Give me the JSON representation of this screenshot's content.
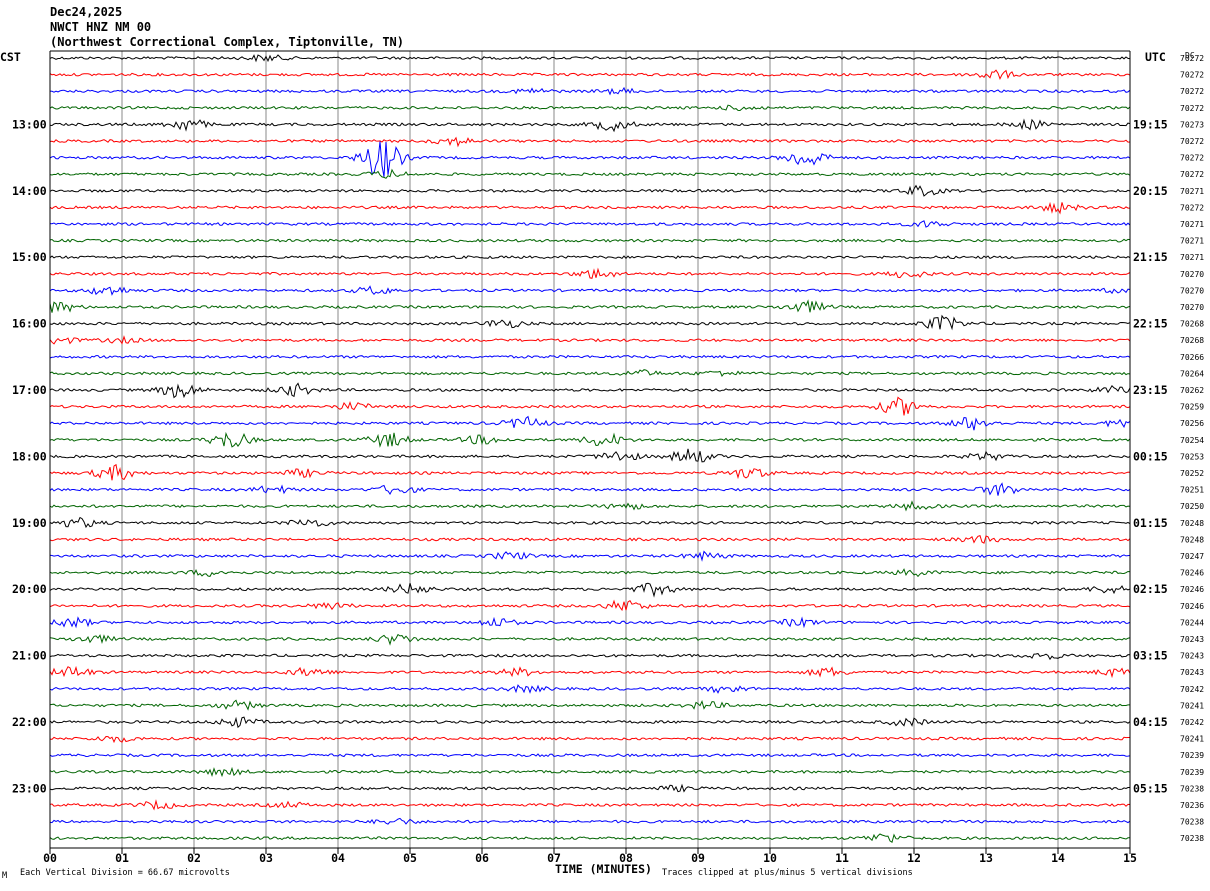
{
  "header": {
    "date": "Dec24,2025",
    "station": "NWCT HNZ NM 00",
    "location": "(Northwest Correctional Complex, Tiptonville, TN)"
  },
  "left_zone": "CST",
  "right_zone": "UTC",
  "dc_label": "DC",
  "footer": {
    "scale_note": "Each Vertical Division =   66.67 microvolts",
    "clip_note": "Traces clipped at plus/minus 5 vertical divisions",
    "corner_mark": "M"
  },
  "colors": {
    "black": "#000000",
    "red": "#ff0000",
    "blue": "#0000ff",
    "green": "#006400",
    "grid": "#888888"
  },
  "chart_data": {
    "type": "line",
    "xlabel": "TIME (MINUTES)",
    "x_ticks": [
      "00",
      "01",
      "02",
      "03",
      "04",
      "05",
      "06",
      "07",
      "08",
      "09",
      "10",
      "11",
      "12",
      "13",
      "14",
      "15"
    ],
    "xlim": [
      0,
      15
    ],
    "trace_color_cycle": [
      "black",
      "red",
      "blue",
      "green"
    ],
    "left_hour_labels": [
      "13:00",
      "14:00",
      "15:00",
      "16:00",
      "17:00",
      "18:00",
      "19:00",
      "20:00",
      "21:00",
      "22:00",
      "23:00"
    ],
    "right_hour_labels": [
      "19:15",
      "20:15",
      "21:15",
      "22:15",
      "23:15",
      "00:15",
      "01:15",
      "02:15",
      "03:15",
      "04:15",
      "05:15"
    ],
    "hour_label_trace_index": [
      4,
      8,
      12,
      16,
      20,
      24,
      28,
      32,
      36,
      40,
      44
    ],
    "dc_offsets": [
      "70272",
      "70272",
      "70272",
      "70272",
      "70273",
      "70272",
      "70272",
      "70272",
      "70271",
      "70272",
      "70271",
      "70271",
      "70271",
      "70270",
      "70270",
      "70270",
      "70268",
      "70268",
      "70266",
      "70264",
      "70262",
      "70259",
      "70256",
      "70254",
      "70253",
      "70252",
      "70251",
      "70250",
      "70248",
      "70248",
      "70247",
      "70246",
      "70246",
      "70246",
      "70244",
      "70243",
      "70243",
      "70243",
      "70242",
      "70241",
      "70242",
      "70241",
      "70239",
      "70239",
      "70238",
      "70236",
      "70238",
      "70238"
    ],
    "events": [
      [
        [
          3.0,
          0.5
        ]
      ],
      [
        [
          13.1,
          0.8
        ]
      ],
      [
        [
          6.7,
          0.4
        ],
        [
          7.9,
          0.4
        ]
      ],
      [
        [
          9.6,
          0.4
        ]
      ],
      [
        [
          1.9,
          1.0
        ],
        [
          7.8,
          1.0
        ],
        [
          13.6,
          0.7
        ]
      ],
      [
        [
          5.6,
          0.7
        ]
      ],
      [
        [
          4.6,
          3.5
        ],
        [
          10.5,
          1.6
        ]
      ],
      [
        [
          4.7,
          0.6
        ]
      ],
      [
        [
          12.1,
          0.8
        ]
      ],
      [
        [
          14.0,
          0.8
        ]
      ],
      [
        [
          12.2,
          0.5
        ]
      ],
      [],
      [],
      [
        [
          7.6,
          0.8
        ],
        [
          11.9,
          0.6
        ]
      ],
      [
        [
          0.8,
          0.8
        ],
        [
          4.5,
          0.6
        ],
        [
          14.9,
          0.4
        ]
      ],
      [
        [
          0.1,
          0.9
        ],
        [
          10.5,
          1.0
        ]
      ],
      [
        [
          6.3,
          0.7
        ],
        [
          12.4,
          1.2
        ]
      ],
      [
        [
          0.1,
          0.6
        ],
        [
          1.0,
          0.4
        ]
      ],
      [],
      [
        [
          8.2,
          0.5
        ],
        [
          9.3,
          0.4
        ]
      ],
      [
        [
          1.8,
          1.3
        ],
        [
          3.4,
          1.0
        ],
        [
          14.8,
          0.6
        ]
      ],
      [
        [
          4.2,
          0.6
        ],
        [
          11.8,
          1.5
        ]
      ],
      [
        [
          6.6,
          1.0
        ],
        [
          12.8,
          1.1
        ],
        [
          14.9,
          0.6
        ]
      ],
      [
        [
          2.5,
          1.4
        ],
        [
          4.7,
          1.2
        ],
        [
          7.7,
          1.1
        ],
        [
          6.0,
          0.7
        ]
      ],
      [
        [
          7.9,
          0.9
        ],
        [
          8.9,
          1.3
        ],
        [
          13.0,
          0.6
        ]
      ],
      [
        [
          0.9,
          1.3
        ],
        [
          3.5,
          0.6
        ],
        [
          9.7,
          0.9
        ]
      ],
      [
        [
          3.1,
          0.6
        ],
        [
          4.8,
          0.8
        ],
        [
          13.2,
          1.0
        ]
      ],
      [
        [
          8.0,
          0.5
        ],
        [
          12.0,
          0.6
        ]
      ],
      [
        [
          0.4,
          0.8
        ],
        [
          3.6,
          0.7
        ]
      ],
      [
        [
          12.9,
          0.6
        ]
      ],
      [
        [
          6.4,
          0.6
        ],
        [
          9.1,
          0.6
        ]
      ],
      [
        [
          2.2,
          0.5
        ],
        [
          12.0,
          0.5
        ]
      ],
      [
        [
          5.0,
          0.9
        ],
        [
          8.4,
          1.0
        ],
        [
          14.7,
          0.6
        ]
      ],
      [
        [
          3.9,
          0.5
        ],
        [
          8.0,
          1.0
        ]
      ],
      [
        [
          0.3,
          0.8
        ],
        [
          6.2,
          0.7
        ],
        [
          10.4,
          0.6
        ]
      ],
      [
        [
          0.6,
          0.6
        ],
        [
          4.8,
          0.8
        ]
      ],
      [
        [
          13.8,
          0.5
        ]
      ],
      [
        [
          0.3,
          0.9
        ],
        [
          3.6,
          0.7
        ],
        [
          6.5,
          0.6
        ],
        [
          10.8,
          0.7
        ],
        [
          14.8,
          0.6
        ]
      ],
      [
        [
          6.6,
          0.5
        ],
        [
          9.4,
          0.6
        ]
      ],
      [
        [
          2.6,
          0.7
        ],
        [
          9.1,
          0.6
        ]
      ],
      [
        [
          2.6,
          0.8
        ],
        [
          11.9,
          0.6
        ]
      ],
      [
        [
          0.9,
          0.5
        ]
      ],
      [],
      [
        [
          2.4,
          0.6
        ]
      ],
      [
        [
          8.7,
          0.4
        ]
      ],
      [
        [
          1.5,
          0.6
        ],
        [
          3.3,
          0.4
        ]
      ],
      [
        [
          4.8,
          0.5
        ]
      ],
      [
        [
          11.6,
          0.8
        ]
      ]
    ]
  }
}
